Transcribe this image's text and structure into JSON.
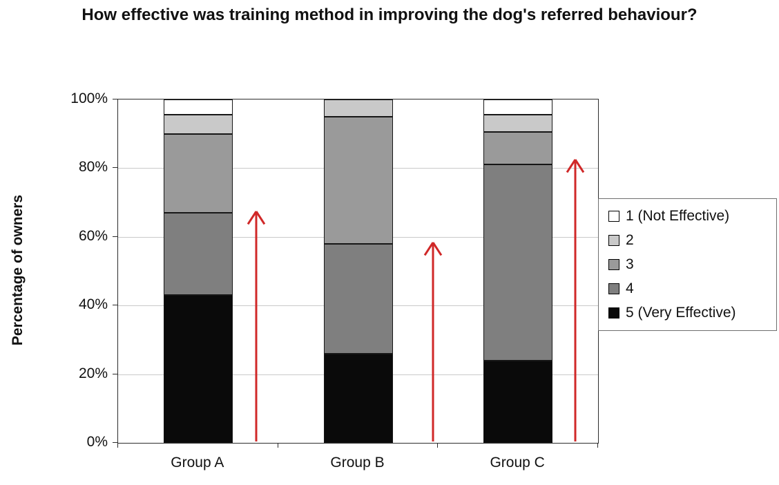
{
  "chart_data": {
    "type": "stacked-bar-100",
    "title": "How effective was training method in improving the dog's referred behaviour?",
    "ylabel": "Percentage of owners",
    "categories": [
      "Group A",
      "Group B",
      "Group C"
    ],
    "series": [
      {
        "name": "5 (Very Effective)",
        "color": "#0a0a0a",
        "values": [
          43,
          26,
          24
        ]
      },
      {
        "name": "4",
        "color": "#7f7f7f",
        "values": [
          24,
          32,
          57
        ]
      },
      {
        "name": "3",
        "color": "#9a9a9a",
        "values": [
          23,
          37,
          9.5
        ]
      },
      {
        "name": "2",
        "color": "#c9c9c9",
        "values": [
          5.5,
          5,
          5
        ]
      },
      {
        "name": "1 (Not Effective)",
        "color": "#ffffff",
        "values": [
          4.5,
          0,
          4.5
        ]
      }
    ],
    "legend": [
      {
        "label": "1 (Not Effective)",
        "color": "#ffffff"
      },
      {
        "label": "2",
        "color": "#c9c9c9"
      },
      {
        "label": "3",
        "color": "#9a9a9a"
      },
      {
        "label": "4",
        "color": "#7f7f7f"
      },
      {
        "label": "5 (Very Effective)",
        "color": "#0a0a0a"
      }
    ],
    "legend_position": "right",
    "yticks": [
      0,
      20,
      40,
      60,
      80,
      100
    ],
    "ytick_labels": [
      "0%",
      "20%",
      "40%",
      "60%",
      "80%",
      "100%"
    ],
    "ylim": [
      0,
      100
    ],
    "grid": true,
    "annotations": [
      {
        "type": "up-arrow",
        "category": "Group A",
        "from": 0,
        "to": 67,
        "x_offset": 84,
        "color": "#d02828"
      },
      {
        "type": "up-arrow",
        "category": "Group B",
        "from": 0,
        "to": 58,
        "x_offset": 108,
        "color": "#d02828"
      },
      {
        "type": "up-arrow",
        "category": "Group C",
        "from": 0,
        "to": 82,
        "x_offset": 83,
        "color": "#d02828"
      }
    ]
  }
}
